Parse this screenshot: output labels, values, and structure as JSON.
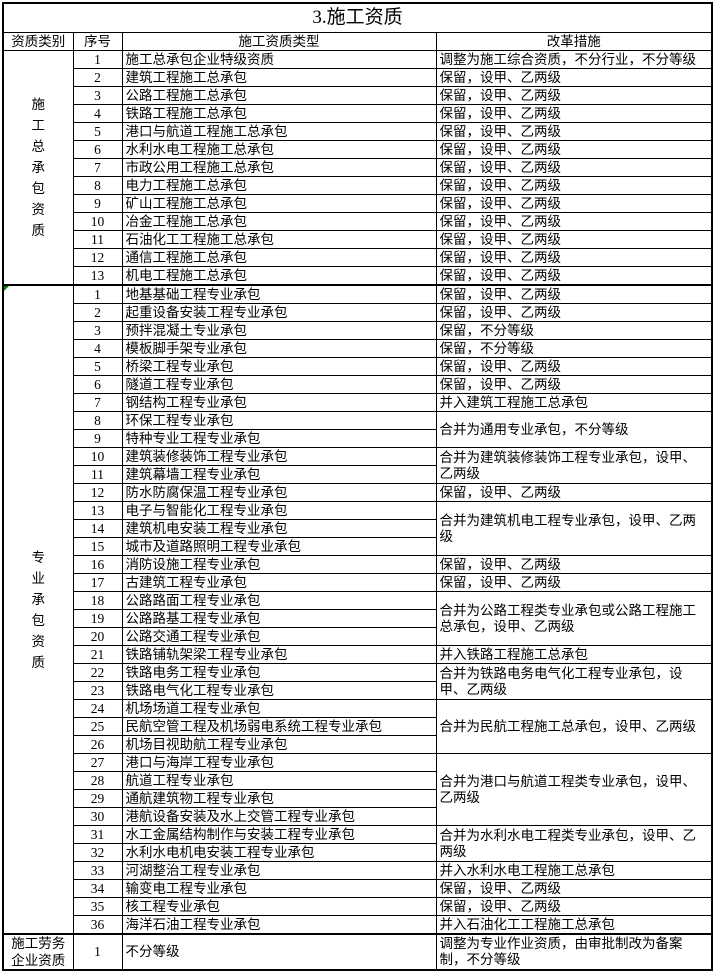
{
  "title": "3.施工资质",
  "columns": [
    "资质类别",
    "序号",
    "施工资质类型",
    "改革措施"
  ],
  "colors": {
    "border": "#000000",
    "background": "#ffffff",
    "text": "#000000",
    "comment_marker_green": "#0b7d0b"
  },
  "sections": [
    {
      "category": "施工总承包资质",
      "vertical": true,
      "marker": false,
      "rows": [
        {
          "no": "1",
          "type": "施工总承包企业特级资质",
          "measure": "调整为施工综合资质，不分行业，不分等级"
        },
        {
          "no": "2",
          "type": "建筑工程施工总承包",
          "measure": "保留，设甲、乙两级"
        },
        {
          "no": "3",
          "type": "公路工程施工总承包",
          "measure": "保留，设甲、乙两级"
        },
        {
          "no": "4",
          "type": "铁路工程施工总承包",
          "measure": "保留，设甲、乙两级"
        },
        {
          "no": "5",
          "type": "港口与航道工程施工总承包",
          "measure": "保留，设甲、乙两级"
        },
        {
          "no": "6",
          "type": "水利水电工程施工总承包",
          "measure": "保留，设甲、乙两级"
        },
        {
          "no": "7",
          "type": "市政公用工程施工总承包",
          "measure": "保留，设甲、乙两级"
        },
        {
          "no": "8",
          "type": "电力工程施工总承包",
          "measure": "保留，设甲、乙两级"
        },
        {
          "no": "9",
          "type": "矿山工程施工总承包",
          "measure": "保留，设甲、乙两级"
        },
        {
          "no": "10",
          "type": "冶金工程施工总承包",
          "measure": "保留，设甲、乙两级"
        },
        {
          "no": "11",
          "type": "石油化工工程施工总承包",
          "measure": "保留，设甲、乙两级"
        },
        {
          "no": "12",
          "type": "通信工程施工总承包",
          "measure": "保留，设甲、乙两级"
        },
        {
          "no": "13",
          "type": "机电工程施工总承包",
          "measure": "保留，设甲、乙两级"
        }
      ]
    },
    {
      "category": "专业承包资质",
      "vertical": true,
      "marker": true,
      "rows": [
        {
          "no": "1",
          "type": "地基基础工程专业承包",
          "measure": "保留，设甲、乙两级"
        },
        {
          "no": "2",
          "type": "起重设备安装工程专业承包",
          "measure": "保留，设甲、乙两级"
        },
        {
          "no": "3",
          "type": "预拌混凝土专业承包",
          "measure": "保留，不分等级"
        },
        {
          "no": "4",
          "type": "模板脚手架专业承包",
          "measure": "保留，不分等级"
        },
        {
          "no": "5",
          "type": "桥梁工程专业承包",
          "measure": "保留，设甲、乙两级"
        },
        {
          "no": "6",
          "type": "隧道工程专业承包",
          "measure": "保留，设甲、乙两级"
        },
        {
          "no": "7",
          "type": "钢结构工程专业承包",
          "measure": "并入建筑工程施工总承包"
        },
        {
          "no": "8",
          "type": "环保工程专业承包",
          "measure": "合并为通用专业承包，不分等级",
          "span": 2
        },
        {
          "no": "9",
          "type": "特种专业工程专业承包"
        },
        {
          "no": "10",
          "type": "建筑装修装饰工程专业承包",
          "measure": "合并为建筑装修装饰工程专业承包，设甲、乙两级",
          "span": 2
        },
        {
          "no": "11",
          "type": "建筑幕墙工程专业承包"
        },
        {
          "no": "12",
          "type": "防水防腐保温工程专业承包",
          "measure": "保留，设甲、乙两级"
        },
        {
          "no": "13",
          "type": "电子与智能化工程专业承包",
          "measure": "合并为建筑机电工程专业承包，设甲、乙两级",
          "span": 3
        },
        {
          "no": "14",
          "type": "建筑机电安装工程专业承包"
        },
        {
          "no": "15",
          "type": "城市及道路照明工程专业承包"
        },
        {
          "no": "16",
          "type": "消防设施工程专业承包",
          "measure": "保留，设甲、乙两级"
        },
        {
          "no": "17",
          "type": "古建筑工程专业承包",
          "measure": "保留，设甲、乙两级"
        },
        {
          "no": "18",
          "type": "公路路面工程专业承包",
          "measure": "合并为公路工程类专业承包或公路工程施工总承包，设甲、乙两级",
          "span": 3
        },
        {
          "no": "19",
          "type": "公路路基工程专业承包"
        },
        {
          "no": "20",
          "type": "公路交通工程专业承包"
        },
        {
          "no": "21",
          "type": "铁路铺轨架梁工程专业承包",
          "measure": "并入铁路工程施工总承包"
        },
        {
          "no": "22",
          "type": "铁路电务工程专业承包",
          "measure": "合并为铁路电务电气化工程专业承包，设甲、乙两级",
          "span": 2
        },
        {
          "no": "23",
          "type": "铁路电气化工程专业承包"
        },
        {
          "no": "24",
          "type": "机场场道工程专业承包",
          "measure": "合并为民航工程施工总承包，设甲、乙两级",
          "span": 3
        },
        {
          "no": "25",
          "type": "民航空管工程及机场弱电系统工程专业承包"
        },
        {
          "no": "26",
          "type": "机场目视助航工程专业承包"
        },
        {
          "no": "27",
          "type": "港口与海岸工程专业承包",
          "measure": "合并为港口与航道工程类专业承包，设甲、乙两级",
          "span": 4
        },
        {
          "no": "28",
          "type": "航道工程专业承包"
        },
        {
          "no": "29",
          "type": "通航建筑物工程专业承包"
        },
        {
          "no": "30",
          "type": "港航设备安装及水上交管工程专业承包"
        },
        {
          "no": "31",
          "type": "水工金属结构制作与安装工程专业承包",
          "measure": "合并为水利水电工程类专业承包，设甲、乙两级",
          "span": 2
        },
        {
          "no": "32",
          "type": "水利水电机电安装工程专业承包"
        },
        {
          "no": "33",
          "type": "河湖整治工程专业承包",
          "measure": "并入水利水电工程施工总承包"
        },
        {
          "no": "34",
          "type": "输变电工程专业承包",
          "measure": "保留，设甲、乙两级"
        },
        {
          "no": "35",
          "type": "核工程专业承包",
          "measure": "保留，设甲、乙两级"
        },
        {
          "no": "36",
          "type": "海洋石油工程专业承包",
          "measure": "并入石油化工工程施工总承包"
        }
      ]
    },
    {
      "category": "施工劳务企业资质",
      "vertical": false,
      "marker": false,
      "tall": true,
      "rows": [
        {
          "no": "1",
          "type": "不分等级",
          "measure": "调整为专业作业资质，由审批制改为备案制，不分等级"
        }
      ]
    }
  ]
}
